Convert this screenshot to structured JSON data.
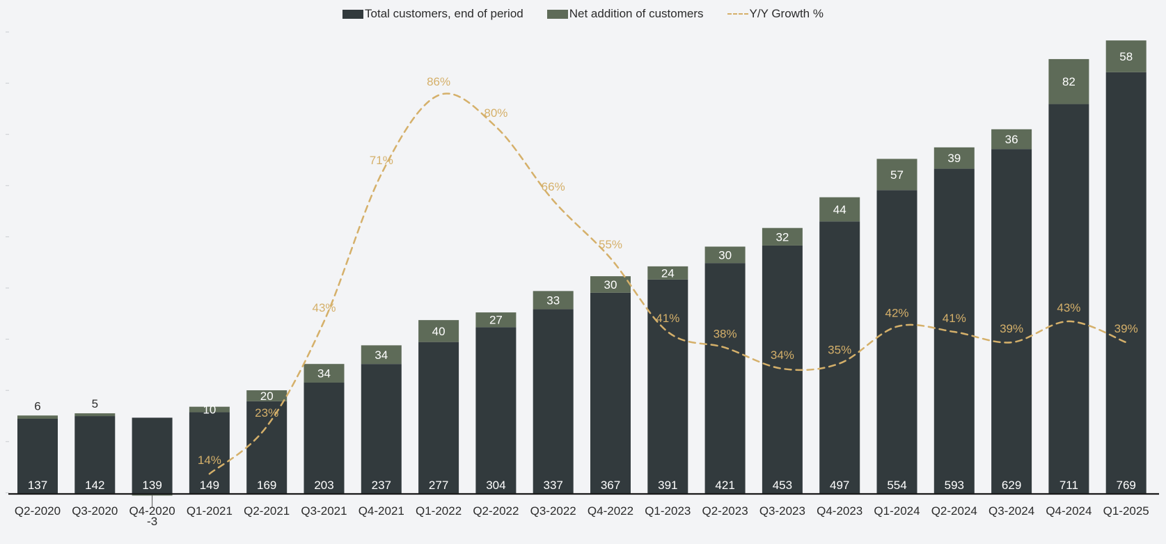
{
  "chart_data": {
    "type": "bar",
    "stacked": true,
    "categories": [
      "Q2-2020",
      "Q3-2020",
      "Q4-2020",
      "Q1-2021",
      "Q2-2021",
      "Q3-2021",
      "Q4-2021",
      "Q1-2022",
      "Q2-2022",
      "Q3-2022",
      "Q4-2022",
      "Q1-2023",
      "Q2-2023",
      "Q3-2023",
      "Q4-2023",
      "Q1-2024",
      "Q2-2024",
      "Q3-2024",
      "Q4-2024",
      "Q1-2025"
    ],
    "series": [
      {
        "name": "Total customers, end of period",
        "type": "bar",
        "color": "#323a3d",
        "values": [
          137,
          142,
          139,
          149,
          169,
          203,
          237,
          277,
          304,
          337,
          367,
          391,
          421,
          453,
          497,
          554,
          593,
          629,
          711,
          769
        ]
      },
      {
        "name": "Net addition of customers",
        "type": "bar",
        "color": "#5e6b58",
        "values": [
          6,
          5,
          -3,
          10,
          20,
          34,
          34,
          40,
          27,
          33,
          30,
          24,
          30,
          32,
          44,
          57,
          39,
          36,
          82,
          58
        ]
      },
      {
        "name": "Y/Y Growth %",
        "type": "line",
        "style": "dashed",
        "color": "#d5b06a",
        "values": [
          null,
          null,
          null,
          14,
          23,
          43,
          71,
          86,
          80,
          66,
          55,
          41,
          38,
          34,
          35,
          42,
          41,
          39,
          43,
          39
        ],
        "labels": [
          "",
          "",
          "",
          "14%",
          "23%",
          "43%",
          "71%",
          "86%",
          "80%",
          "66%",
          "55%",
          "41%",
          "38%",
          "34%",
          "35%",
          "42%",
          "41%",
          "39%",
          "43%",
          "39%"
        ]
      }
    ],
    "legend": {
      "position": "top-center",
      "items": [
        {
          "label": "Total customers, end of period",
          "kind": "box",
          "color": "#323a3d"
        },
        {
          "label": "Net addition of customers",
          "kind": "box",
          "color": "#5e6b58"
        },
        {
          "label": "Y/Y Growth %",
          "kind": "dashed-line",
          "color": "#d5b06a"
        }
      ]
    },
    "ylim": [
      0,
      850
    ],
    "growth_ylim": [
      -20,
      100
    ],
    "title": "",
    "xlabel": "",
    "ylabel": ""
  }
}
